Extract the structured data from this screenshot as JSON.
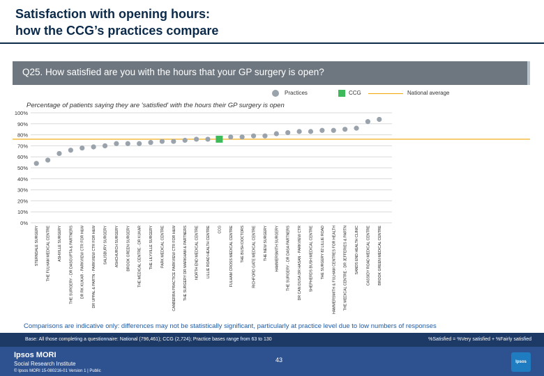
{
  "header": {
    "title": "Satisfaction with opening hours:\nhow the CCG’s practices compare"
  },
  "question": {
    "text": "Q25. How satisfied are you with the hours that your GP surgery is open?"
  },
  "legend": {
    "practices": "Practices",
    "ccg": "CCG",
    "national": "National average"
  },
  "chart_data": {
    "type": "scatter",
    "title": "Percentage of patients saying they are 'satisfied' with the hours their GP surgery is open",
    "ylim": [
      0,
      100
    ],
    "y_ticks": [
      "0%",
      "10%",
      "20%",
      "30%",
      "40%",
      "50%",
      "60%",
      "70%",
      "80%",
      "90%",
      "100%"
    ],
    "national_average": 76,
    "categories": [
      "STERNDALE SURGERY",
      "THE FULHAM MEDICAL CENTRE",
      "ASHVILLE SURGERY",
      "THE SURGERY - DR DASGUPTA & PARTNERS",
      "DR RK KUKAR - PARKVIEW CTR FOR H&W",
      "DR UPPAL & PARTN - PARKVIEW CTR FOR H&W",
      "SALISBURY SURGERY",
      "ASHCHURCH SURGERY",
      "BROOK GREEN SURGERY",
      "THE MEDICAL CENTRE - DR KUKAR",
      "THE LILYVILLE SURGERY",
      "PARK MEDICAL CENTRE",
      "CANBERRA PRACTICE PARKVIEW CTR FOR H&W",
      "THE SURGERY DR MARKHAM & PARTNERS",
      "NORTH END MEDICAL CENTRE",
      "LILLIE ROAD HEALTH CENTRE",
      "CCG",
      "FULHAM CROSS MEDICAL CENTRE",
      "THE BUSH DOCTORS",
      "RICHFORD GATE MEDICAL CENTRE",
      "THE NEW SURGERY",
      "HAMMERSMITH SURGERY",
      "THE SURGERY - DR DASA PARTNERS",
      "DR CAN DUSA DR HASAN - PARKVIEW CTR",
      "SHEPHERDS BUSH MEDICAL CENTRE",
      "THE SURGERY 82 LILLIE ROAD",
      "HAMMERSMITH & FULHAM CENTRES FOR HEALTH",
      "THE MEDICAL CENTRE - DR JEFFERIES & PARTN",
      "SANDS END HEALTH CLINIC",
      "CASSIDY ROAD MEDICAL CENTRE",
      "BROOK GREEN MEDICAL CENTRE"
    ],
    "values": [
      54,
      57,
      63,
      66,
      68,
      69,
      70,
      72,
      72,
      72,
      73,
      74,
      74,
      75,
      76,
      76,
      76,
      78,
      78,
      79,
      79,
      81,
      82,
      83,
      83,
      84,
      84,
      85,
      86,
      92,
      94
    ],
    "ccg_index": 16
  },
  "footnotes": {
    "comparison_note": "Comparisons are indicative only: differences may not be statistically significant, particularly at practice level due to low numbers of responses",
    "base": "Base: All those completing a questionnaire: National (796,461); CCG (2,724); Practice bases range from 63 to 130",
    "satisfied_key": "%Satisfied = %Very satisfied + %Fairly satisfied"
  },
  "footer": {
    "ipsos": "Ipsos MORI",
    "institute": "Social Research Institute",
    "copyright": "© Ipsos MORI    15-080216-01 Version 1 | Public",
    "page": "43",
    "logo": "Ipsos"
  },
  "colors": {
    "practice": "#9aa3ab",
    "ccg": "#3fba5a",
    "national": "#f0a500",
    "grid": "#d9d9d9"
  }
}
